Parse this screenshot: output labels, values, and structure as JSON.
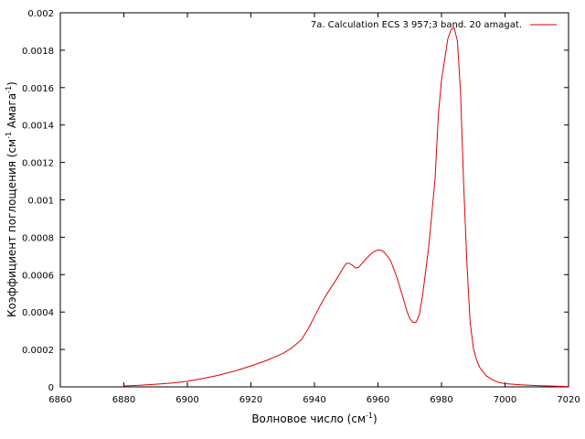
{
  "chart_data": {
    "type": "line",
    "xlabel_main": "Волновое число (см",
    "xlabel_sup": "-1",
    "xlabel_end": ")",
    "ylabel_main": "Коэффициент поглощения (см",
    "ylabel_sup1": "-1",
    "ylabel_mid": " Амага",
    "ylabel_sup2": "-1",
    "ylabel_end": ")",
    "xlim": [
      6860,
      7020
    ],
    "ylim": [
      0,
      0.002
    ],
    "x_ticks": [
      6860,
      6880,
      6900,
      6920,
      6940,
      6960,
      6980,
      7000,
      7020
    ],
    "y_ticks": [
      0,
      0.0002,
      0.0004,
      0.0006,
      0.0008,
      0.001,
      0.0012,
      0.0014,
      0.0016,
      0.0018,
      0.002
    ],
    "y_tick_labels": [
      "0",
      "0.0002",
      "0.0004",
      "0.0006",
      "0.0008",
      "0.001",
      "0.0012",
      "0.0014",
      "0.0016",
      "0.0018",
      "0.002"
    ],
    "legend_position": "top-right",
    "grid": false,
    "series": [
      {
        "name": "7a. Calculation ECS  3  957;3 band. 20 amagat.",
        "color": "#e00000",
        "x": [
          6880,
          6885,
          6890,
          6895,
          6900,
          6905,
          6910,
          6915,
          6920,
          6925,
          6930,
          6933,
          6936,
          6938,
          6940,
          6942,
          6944,
          6946,
          6948,
          6949,
          6950,
          6951,
          6952,
          6953,
          6954,
          6956,
          6958,
          6959,
          6960,
          6961,
          6962,
          6964,
          6966,
          6968,
          6969,
          6970,
          6971,
          6972,
          6973,
          6974,
          6976,
          6978,
          6979,
          6980,
          6981,
          6982,
          6983,
          6984,
          6985,
          6986,
          6987,
          6988,
          6989,
          6990,
          6991,
          6992,
          6994,
          6996,
          6998,
          7000,
          7005,
          7010,
          7020
        ],
        "y": [
          5e-06,
          9e-06,
          1.4e-05,
          2e-05,
          3e-05,
          4.5e-05,
          6.3e-05,
          8.5e-05,
          0.000112,
          0.000142,
          0.000178,
          0.00021,
          0.000255,
          0.00031,
          0.000375,
          0.00044,
          0.0005,
          0.00055,
          0.000605,
          0.000635,
          0.00066,
          0.00066,
          0.00065,
          0.000635,
          0.00064,
          0.00068,
          0.000715,
          0.000725,
          0.000732,
          0.00073,
          0.00072,
          0.000675,
          0.000585,
          0.00047,
          0.00041,
          0.000365,
          0.000345,
          0.000345,
          0.000385,
          0.000485,
          0.00075,
          0.00112,
          0.00145,
          0.00164,
          0.00175,
          0.00186,
          0.00191,
          0.00192,
          0.00185,
          0.00158,
          0.00108,
          0.00066,
          0.00035,
          0.00021,
          0.000145,
          0.000105,
          6e-05,
          3.8e-05,
          2.4e-05,
          1.7e-05,
          1.1e-05,
          7e-06,
          2e-06
        ]
      }
    ]
  }
}
